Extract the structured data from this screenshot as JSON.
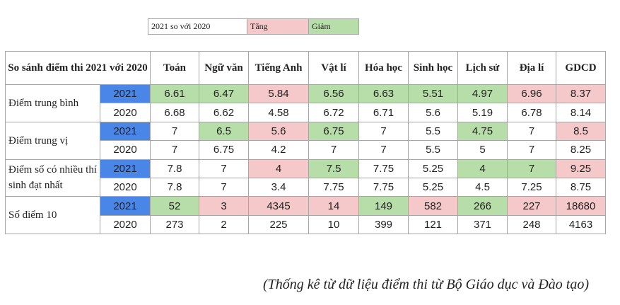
{
  "legend": {
    "label": "2021 so với 2020",
    "increase": "Tăng",
    "decrease": "Giảm"
  },
  "table": {
    "header": "So sánh điểm thi 2021 với 2020",
    "columns": [
      "Toán",
      "Ngữ văn",
      "Tiếng Anh",
      "Vật lí",
      "Hóa học",
      "Sinh học",
      "Lịch sử",
      "Địa lí",
      "GDCD"
    ],
    "groups": [
      {
        "label": "Điểm trung bình",
        "rows": [
          {
            "year": "2021",
            "values": [
              "6.61",
              "6.47",
              "5.84",
              "6.56",
              "6.63",
              "5.51",
              "4.97",
              "6.96",
              "8.37"
            ]
          },
          {
            "year": "2020",
            "values": [
              "6.68",
              "6.62",
              "4.58",
              "6.72",
              "6.71",
              "5.6",
              "5.19",
              "6.78",
              "8.14"
            ]
          }
        ]
      },
      {
        "label": "Điểm trung vị",
        "rows": [
          {
            "year": "2021",
            "values": [
              "7",
              "6.5",
              "5.6",
              "6.75",
              "7",
              "5.5",
              "4.75",
              "7",
              "8.5"
            ]
          },
          {
            "year": "2020",
            "values": [
              "7",
              "6.75",
              "4.2",
              "7",
              "7",
              "5.5",
              "5",
              "7",
              "8.25"
            ]
          }
        ]
      },
      {
        "label": "Điểm số có nhiều thí sinh đạt nhất",
        "rows": [
          {
            "year": "2021",
            "values": [
              "7.8",
              "7",
              "4",
              "7.5",
              "7.75",
              "5.25",
              "4",
              "7",
              "9.25"
            ]
          },
          {
            "year": "2020",
            "values": [
              "7.8",
              "7",
              "3.4",
              "7.75",
              "7.75",
              "5.25",
              "4.5",
              "7.25",
              "8.75"
            ]
          }
        ]
      },
      {
        "label": "Số điểm 10",
        "rows": [
          {
            "year": "2021",
            "values": [
              "52",
              "3",
              "4345",
              "14",
              "149",
              "582",
              "266",
              "227",
              "18680"
            ]
          },
          {
            "year": "2020",
            "values": [
              "273",
              "2",
              "225",
              "10",
              "399",
              "121",
              "371",
              "248",
              "4163"
            ]
          }
        ]
      }
    ]
  },
  "caption": "(Thống kê từ dữ liệu điểm thi từ Bộ Giáo dục và Đào tạo)"
}
